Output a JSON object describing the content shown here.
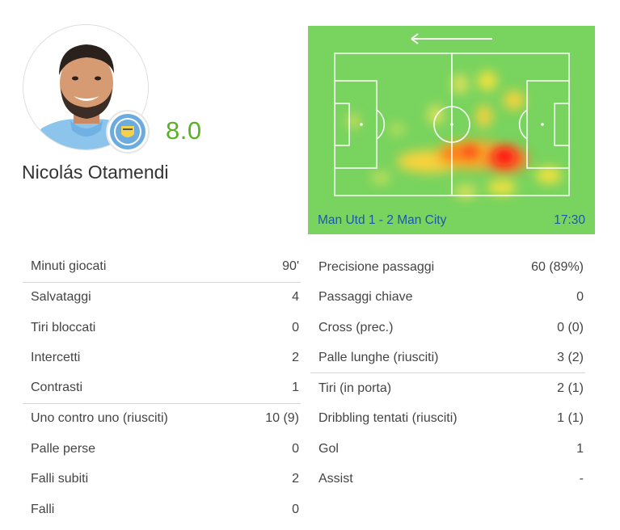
{
  "player": {
    "name": "Nicolás Otamendi",
    "rating": "8.0",
    "club_badge_icon": "manchester-city-badge-icon",
    "accent_color": "#59b226"
  },
  "heatmap": {
    "direction_icon": "arrow-left-icon",
    "match": "Man Utd 1 - 2 Man City",
    "time": "17:30",
    "pitch_color": "#78d35f",
    "label_color": "#1a5aa6"
  },
  "stats_left": [
    {
      "label": "Minuti giocati",
      "value": "90'"
    },
    {
      "label": "Salvataggi",
      "value": "4"
    },
    {
      "label": "Tiri bloccati",
      "value": "0"
    },
    {
      "label": "Intercetti",
      "value": "2"
    },
    {
      "label": "Contrasti",
      "value": "1"
    },
    {
      "label": "Uno contro uno (riusciti)",
      "value": "10 (9)"
    },
    {
      "label": "Palle perse",
      "value": "0"
    },
    {
      "label": "Falli subiti",
      "value": "2"
    },
    {
      "label": "Falli",
      "value": "0"
    }
  ],
  "stats_right": [
    {
      "label": "Precisione passaggi",
      "value": "60 (89%)"
    },
    {
      "label": "Passaggi chiave",
      "value": "0"
    },
    {
      "label": "Cross (prec.)",
      "value": "0 (0)"
    },
    {
      "label": "Palle lunghe (riusciti)",
      "value": "3 (2)"
    },
    {
      "label": "Tiri (in porta)",
      "value": "2 (1)"
    },
    {
      "label": "Dribbling tentati (riusciti)",
      "value": "1 (1)"
    },
    {
      "label": "Gol",
      "value": "1"
    },
    {
      "label": "Assist",
      "value": "-"
    }
  ]
}
